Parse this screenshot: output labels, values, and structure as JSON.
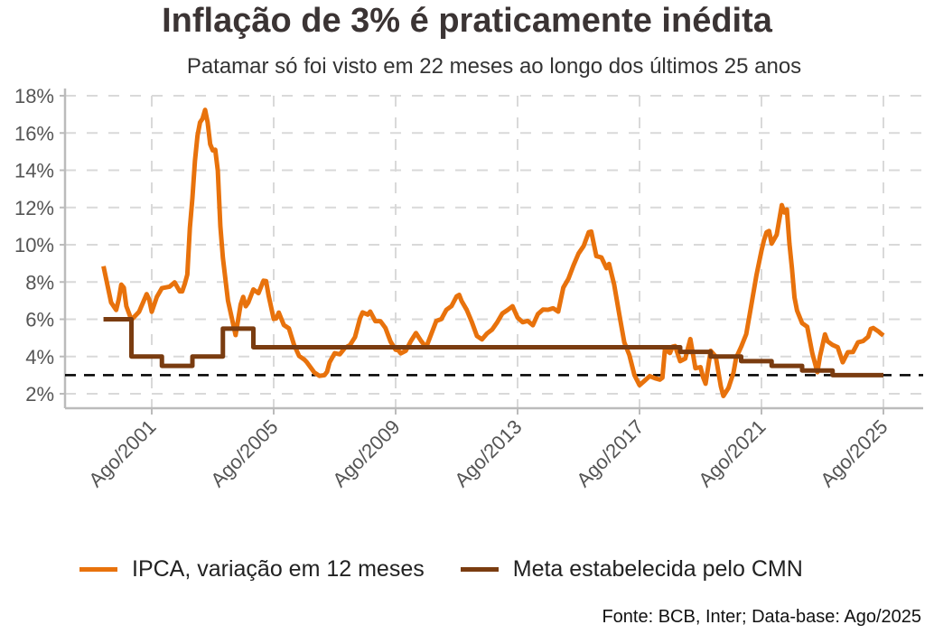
{
  "chart_data": {
    "type": "line",
    "title": "Inflação de 3% é praticamente inédita",
    "subtitle": "Patamar só foi visto em 22 meses ao longo dos últimos 25 anos",
    "xlabel": "",
    "ylabel": "",
    "ylim": [
      2,
      18
    ],
    "y_ticks": [
      "2%",
      "4%",
      "6%",
      "8%",
      "10%",
      "12%",
      "14%",
      "16%",
      "18%"
    ],
    "x_ticks": [
      "Ago/2001",
      "Ago/2005",
      "Ago/2009",
      "Ago/2013",
      "Ago/2017",
      "Ago/2021",
      "Ago/2025"
    ],
    "x_tick_dates": [
      "2001-08",
      "2005-08",
      "2009-08",
      "2013-08",
      "2017-08",
      "2021-08",
      "2025-08"
    ],
    "grid": true,
    "legend_position": "bottom",
    "reference_line": {
      "value": 3,
      "style": "dashed",
      "color": "#000000"
    },
    "series": [
      {
        "name": "IPCA, variação em 12 meses",
        "color": "#e8720c",
        "points": [
          [
            "2000-01",
            8.85
          ],
          [
            "2000-04",
            6.9
          ],
          [
            "2000-06",
            6.5
          ],
          [
            "2000-07",
            7.06
          ],
          [
            "2000-08",
            7.86
          ],
          [
            "2000-09",
            7.7
          ],
          [
            "2000-10",
            6.7
          ],
          [
            "2000-12",
            5.97
          ],
          [
            "2001-03",
            6.4
          ],
          [
            "2001-06",
            7.35
          ],
          [
            "2001-07",
            7.06
          ],
          [
            "2001-08",
            6.4
          ],
          [
            "2001-10",
            7.2
          ],
          [
            "2001-12",
            7.67
          ],
          [
            "2002-03",
            7.75
          ],
          [
            "2002-05",
            7.98
          ],
          [
            "2002-07",
            7.5
          ],
          [
            "2002-08",
            7.5
          ],
          [
            "2002-09",
            7.9
          ],
          [
            "2002-10",
            8.4
          ],
          [
            "2002-11",
            10.9
          ],
          [
            "2002-12",
            12.5
          ],
          [
            "2003-01",
            14.5
          ],
          [
            "2003-02",
            15.85
          ],
          [
            "2003-03",
            16.57
          ],
          [
            "2003-04",
            16.77
          ],
          [
            "2003-05",
            17.24
          ],
          [
            "2003-06",
            16.57
          ],
          [
            "2003-07",
            15.4
          ],
          [
            "2003-08",
            15.07
          ],
          [
            "2003-09",
            15.1
          ],
          [
            "2003-10",
            13.98
          ],
          [
            "2003-11",
            11.0
          ],
          [
            "2003-12",
            9.3
          ],
          [
            "2004-02",
            7.0
          ],
          [
            "2004-05",
            5.15
          ],
          [
            "2004-07",
            6.8
          ],
          [
            "2004-08",
            7.2
          ],
          [
            "2004-09",
            6.7
          ],
          [
            "2004-10",
            6.9
          ],
          [
            "2004-12",
            7.6
          ],
          [
            "2005-02",
            7.4
          ],
          [
            "2005-04",
            8.07
          ],
          [
            "2005-05",
            8.05
          ],
          [
            "2005-06",
            7.27
          ],
          [
            "2005-08",
            6.02
          ],
          [
            "2005-09",
            6.04
          ],
          [
            "2005-10",
            6.36
          ],
          [
            "2005-12",
            5.69
          ],
          [
            "2006-02",
            5.51
          ],
          [
            "2006-04",
            4.63
          ],
          [
            "2006-06",
            4.03
          ],
          [
            "2006-08",
            3.84
          ],
          [
            "2006-09",
            3.7
          ],
          [
            "2006-12",
            3.14
          ],
          [
            "2007-02",
            2.96
          ],
          [
            "2007-04",
            3.0
          ],
          [
            "2007-05",
            3.18
          ],
          [
            "2007-06",
            3.69
          ],
          [
            "2007-08",
            4.18
          ],
          [
            "2007-10",
            4.12
          ],
          [
            "2007-12",
            4.46
          ],
          [
            "2008-02",
            4.61
          ],
          [
            "2008-04",
            5.04
          ],
          [
            "2008-06",
            6.06
          ],
          [
            "2008-07",
            6.37
          ],
          [
            "2008-09",
            6.25
          ],
          [
            "2008-10",
            6.41
          ],
          [
            "2008-12",
            5.9
          ],
          [
            "2009-02",
            5.9
          ],
          [
            "2009-04",
            5.53
          ],
          [
            "2009-06",
            4.8
          ],
          [
            "2009-08",
            4.36
          ],
          [
            "2009-09",
            4.34
          ],
          [
            "2009-10",
            4.17
          ],
          [
            "2009-12",
            4.31
          ],
          [
            "2010-02",
            4.83
          ],
          [
            "2010-04",
            5.26
          ],
          [
            "2010-06",
            4.84
          ],
          [
            "2010-08",
            4.49
          ],
          [
            "2010-10",
            5.2
          ],
          [
            "2010-12",
            5.91
          ],
          [
            "2011-02",
            6.01
          ],
          [
            "2011-04",
            6.51
          ],
          [
            "2011-06",
            6.71
          ],
          [
            "2011-08",
            7.23
          ],
          [
            "2011-09",
            7.31
          ],
          [
            "2011-10",
            6.97
          ],
          [
            "2011-12",
            6.5
          ],
          [
            "2012-02",
            5.85
          ],
          [
            "2012-04",
            5.1
          ],
          [
            "2012-06",
            4.92
          ],
          [
            "2012-08",
            5.24
          ],
          [
            "2012-10",
            5.45
          ],
          [
            "2012-12",
            5.84
          ],
          [
            "2013-02",
            6.31
          ],
          [
            "2013-04",
            6.49
          ],
          [
            "2013-06",
            6.7
          ],
          [
            "2013-08",
            6.09
          ],
          [
            "2013-10",
            5.84
          ],
          [
            "2013-12",
            5.91
          ],
          [
            "2014-02",
            5.68
          ],
          [
            "2014-04",
            6.28
          ],
          [
            "2014-06",
            6.52
          ],
          [
            "2014-08",
            6.51
          ],
          [
            "2014-10",
            6.59
          ],
          [
            "2014-12",
            6.41
          ],
          [
            "2015-02",
            7.7
          ],
          [
            "2015-04",
            8.17
          ],
          [
            "2015-06",
            8.89
          ],
          [
            "2015-08",
            9.53
          ],
          [
            "2015-10",
            9.93
          ],
          [
            "2015-12",
            10.67
          ],
          [
            "2016-01",
            10.71
          ],
          [
            "2016-03",
            9.39
          ],
          [
            "2016-05",
            9.32
          ],
          [
            "2016-07",
            8.74
          ],
          [
            "2016-08",
            8.97
          ],
          [
            "2016-10",
            7.87
          ],
          [
            "2016-12",
            6.29
          ],
          [
            "2017-02",
            4.76
          ],
          [
            "2017-04",
            4.08
          ],
          [
            "2017-06",
            3.0
          ],
          [
            "2017-08",
            2.46
          ],
          [
            "2017-10",
            2.7
          ],
          [
            "2017-12",
            2.95
          ],
          [
            "2018-02",
            2.84
          ],
          [
            "2018-04",
            2.76
          ],
          [
            "2018-05",
            2.86
          ],
          [
            "2018-06",
            4.39
          ],
          [
            "2018-08",
            4.19
          ],
          [
            "2018-09",
            4.53
          ],
          [
            "2018-10",
            4.56
          ],
          [
            "2018-12",
            3.75
          ],
          [
            "2019-02",
            3.89
          ],
          [
            "2019-04",
            4.94
          ],
          [
            "2019-06",
            3.37
          ],
          [
            "2019-08",
            3.43
          ],
          [
            "2019-09",
            2.89
          ],
          [
            "2019-10",
            2.54
          ],
          [
            "2019-12",
            4.31
          ],
          [
            "2020-02",
            4.0
          ],
          [
            "2020-04",
            2.4
          ],
          [
            "2020-05",
            1.88
          ],
          [
            "2020-07",
            2.31
          ],
          [
            "2020-09",
            3.14
          ],
          [
            "2020-10",
            3.92
          ],
          [
            "2020-12",
            4.52
          ],
          [
            "2021-02",
            5.2
          ],
          [
            "2021-04",
            6.76
          ],
          [
            "2021-06",
            8.35
          ],
          [
            "2021-08",
            9.68
          ],
          [
            "2021-09",
            10.25
          ],
          [
            "2021-10",
            10.67
          ],
          [
            "2021-11",
            10.74
          ],
          [
            "2021-12",
            10.06
          ],
          [
            "2022-02",
            10.54
          ],
          [
            "2022-04",
            12.13
          ],
          [
            "2022-05",
            11.73
          ],
          [
            "2022-06",
            11.89
          ],
          [
            "2022-07",
            10.07
          ],
          [
            "2022-08",
            8.73
          ],
          [
            "2022-09",
            7.17
          ],
          [
            "2022-10",
            6.47
          ],
          [
            "2022-12",
            5.79
          ],
          [
            "2023-02",
            5.6
          ],
          [
            "2023-04",
            4.18
          ],
          [
            "2023-06",
            3.16
          ],
          [
            "2023-07",
            3.99
          ],
          [
            "2023-09",
            5.19
          ],
          [
            "2023-10",
            4.82
          ],
          [
            "2023-12",
            4.62
          ],
          [
            "2024-02",
            4.5
          ],
          [
            "2024-04",
            3.69
          ],
          [
            "2024-06",
            4.23
          ],
          [
            "2024-08",
            4.24
          ],
          [
            "2024-10",
            4.76
          ],
          [
            "2024-12",
            4.83
          ],
          [
            "2025-02",
            5.06
          ],
          [
            "2025-03",
            5.48
          ],
          [
            "2025-04",
            5.53
          ],
          [
            "2025-06",
            5.35
          ],
          [
            "2025-07",
            5.23
          ],
          [
            "2025-08",
            5.13
          ]
        ]
      },
      {
        "name": "Meta estabelecida pelo CMN",
        "color": "#7a3c10",
        "step": true,
        "points": [
          [
            "2000-01",
            6.0
          ],
          [
            "2000-12",
            4.0
          ],
          [
            "2001-12",
            3.5
          ],
          [
            "2002-12",
            4.0
          ],
          [
            "2003-12",
            5.5
          ],
          [
            "2004-12",
            4.5
          ],
          [
            "2018-12",
            4.25
          ],
          [
            "2019-12",
            4.0
          ],
          [
            "2020-12",
            3.75
          ],
          [
            "2021-12",
            3.5
          ],
          [
            "2022-12",
            3.25
          ],
          [
            "2023-12",
            3.0
          ],
          [
            "2025-08",
            3.0
          ]
        ]
      }
    ],
    "source": "Fonte: BCB, Inter; Data-base: Ago/2025"
  }
}
